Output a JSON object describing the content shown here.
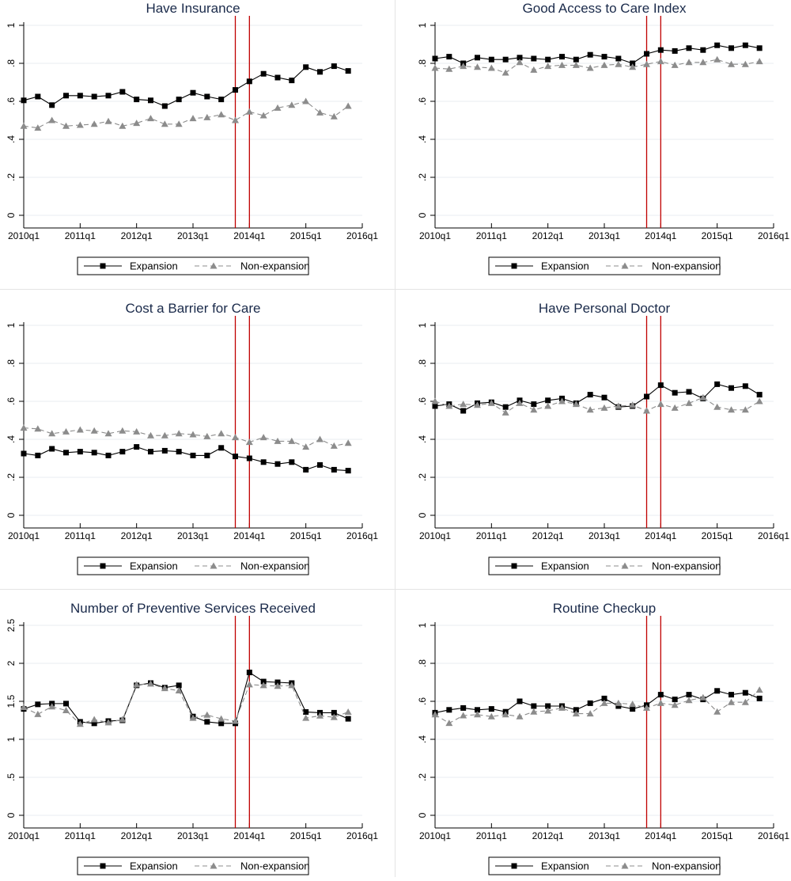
{
  "colors": {
    "expansion": "#000000",
    "non_expansion": "#8c8c8c",
    "reference_line": "#c00000",
    "title": "#1a2a4a",
    "grid": "#e8eef2"
  },
  "chart_data": [
    {
      "type": "line",
      "title": "Have Insurance",
      "x": [
        "2010q1",
        "2010q2",
        "2010q3",
        "2010q4",
        "2011q1",
        "2011q2",
        "2011q3",
        "2011q4",
        "2012q1",
        "2012q2",
        "2012q3",
        "2012q4",
        "2013q1",
        "2013q2",
        "2013q3",
        "2013q4",
        "2014q1",
        "2014q2",
        "2014q3",
        "2014q4",
        "2015q1",
        "2015q2",
        "2015q3",
        "2015q4"
      ],
      "x_ticks": [
        "2010q1",
        "2011q1",
        "2012q1",
        "2013q1",
        "2014q1",
        "2015q1",
        "2016q1"
      ],
      "y_ticks": [
        "0",
        ".2",
        ".4",
        ".6",
        ".8",
        "1"
      ],
      "ylim": [
        0,
        1
      ],
      "reference_lines": [
        "2013q4",
        "2014q1"
      ],
      "legend_position": "bottom",
      "series": [
        {
          "name": "Expansion",
          "marker": "square",
          "values": [
            0.605,
            0.625,
            0.58,
            0.63,
            0.63,
            0.625,
            0.63,
            0.65,
            0.61,
            0.605,
            0.575,
            0.61,
            0.645,
            0.625,
            0.61,
            0.66,
            0.705,
            0.745,
            0.725,
            0.71,
            0.78,
            0.755,
            0.785,
            0.76
          ]
        },
        {
          "name": "Non-expansion",
          "marker": "triangle",
          "values": [
            0.47,
            0.46,
            0.5,
            0.47,
            0.475,
            0.48,
            0.495,
            0.47,
            0.485,
            0.51,
            0.48,
            0.48,
            0.51,
            0.515,
            0.53,
            0.5,
            0.545,
            0.525,
            0.565,
            0.58,
            0.6,
            0.54,
            0.52,
            0.575
          ]
        }
      ]
    },
    {
      "type": "line",
      "title": "Good Access to Care Index",
      "x": [
        "2010q1",
        "2010q2",
        "2010q3",
        "2010q4",
        "2011q1",
        "2011q2",
        "2011q3",
        "2011q4",
        "2012q1",
        "2012q2",
        "2012q3",
        "2012q4",
        "2013q1",
        "2013q2",
        "2013q3",
        "2013q4",
        "2014q1",
        "2014q2",
        "2014q3",
        "2014q4",
        "2015q1",
        "2015q2",
        "2015q3",
        "2015q4"
      ],
      "x_ticks": [
        "2010q1",
        "2011q1",
        "2012q1",
        "2013q1",
        "2014q1",
        "2015q1",
        "2016q1"
      ],
      "y_ticks": [
        "0",
        ".2",
        ".4",
        ".6",
        ".8",
        "1"
      ],
      "ylim": [
        0,
        1
      ],
      "reference_lines": [
        "2013q4",
        "2014q1"
      ],
      "legend_position": "bottom",
      "series": [
        {
          "name": "Expansion",
          "marker": "square",
          "values": [
            0.825,
            0.835,
            0.8,
            0.83,
            0.82,
            0.82,
            0.83,
            0.825,
            0.82,
            0.835,
            0.82,
            0.845,
            0.835,
            0.825,
            0.8,
            0.85,
            0.87,
            0.865,
            0.88,
            0.87,
            0.895,
            0.88,
            0.895,
            0.88
          ]
        },
        {
          "name": "Non-expansion",
          "marker": "triangle",
          "values": [
            0.775,
            0.77,
            0.785,
            0.78,
            0.775,
            0.75,
            0.805,
            0.765,
            0.785,
            0.79,
            0.79,
            0.775,
            0.79,
            0.795,
            0.78,
            0.795,
            0.81,
            0.79,
            0.805,
            0.805,
            0.82,
            0.795,
            0.795,
            0.81
          ]
        }
      ]
    },
    {
      "type": "line",
      "title": "Cost a Barrier for Care",
      "x": [
        "2010q1",
        "2010q2",
        "2010q3",
        "2010q4",
        "2011q1",
        "2011q2",
        "2011q3",
        "2011q4",
        "2012q1",
        "2012q2",
        "2012q3",
        "2012q4",
        "2013q1",
        "2013q2",
        "2013q3",
        "2013q4",
        "2014q1",
        "2014q2",
        "2014q3",
        "2014q4",
        "2015q1",
        "2015q2",
        "2015q3",
        "2015q4"
      ],
      "x_ticks": [
        "2010q1",
        "2011q1",
        "2012q1",
        "2013q1",
        "2014q1",
        "2015q1",
        "2016q1"
      ],
      "y_ticks": [
        "0",
        ".2",
        ".4",
        ".6",
        ".8",
        "1"
      ],
      "ylim": [
        0,
        1
      ],
      "reference_lines": [
        "2013q4",
        "2014q1"
      ],
      "legend_position": "bottom",
      "series": [
        {
          "name": "Expansion",
          "marker": "square",
          "values": [
            0.325,
            0.315,
            0.35,
            0.33,
            0.335,
            0.33,
            0.315,
            0.335,
            0.36,
            0.335,
            0.34,
            0.335,
            0.315,
            0.315,
            0.355,
            0.31,
            0.3,
            0.28,
            0.27,
            0.28,
            0.24,
            0.265,
            0.24,
            0.235
          ]
        },
        {
          "name": "Non-expansion",
          "marker": "triangle",
          "values": [
            0.46,
            0.455,
            0.43,
            0.44,
            0.45,
            0.445,
            0.43,
            0.445,
            0.44,
            0.42,
            0.42,
            0.43,
            0.425,
            0.415,
            0.43,
            0.41,
            0.385,
            0.41,
            0.39,
            0.39,
            0.36,
            0.4,
            0.365,
            0.38
          ]
        }
      ]
    },
    {
      "type": "line",
      "title": "Have Personal Doctor",
      "x": [
        "2010q1",
        "2010q2",
        "2010q3",
        "2010q4",
        "2011q1",
        "2011q2",
        "2011q3",
        "2011q4",
        "2012q1",
        "2012q2",
        "2012q3",
        "2012q4",
        "2013q1",
        "2013q2",
        "2013q3",
        "2013q4",
        "2014q1",
        "2014q2",
        "2014q3",
        "2014q4",
        "2015q1",
        "2015q2",
        "2015q3",
        "2015q4"
      ],
      "x_ticks": [
        "2010q1",
        "2011q1",
        "2012q1",
        "2013q1",
        "2014q1",
        "2015q1",
        "2016q1"
      ],
      "y_ticks": [
        "0",
        ".2",
        ".4",
        ".6",
        ".8",
        "1"
      ],
      "ylim": [
        0,
        1
      ],
      "reference_lines": [
        "2013q4",
        "2014q1"
      ],
      "legend_position": "bottom",
      "series": [
        {
          "name": "Expansion",
          "marker": "square",
          "values": [
            0.575,
            0.585,
            0.55,
            0.59,
            0.595,
            0.57,
            0.605,
            0.585,
            0.605,
            0.615,
            0.59,
            0.635,
            0.62,
            0.57,
            0.575,
            0.625,
            0.685,
            0.645,
            0.65,
            0.615,
            0.69,
            0.67,
            0.68,
            0.635
          ]
        },
        {
          "name": "Non-expansion",
          "marker": "triangle",
          "values": [
            0.6,
            0.575,
            0.585,
            0.58,
            0.59,
            0.54,
            0.59,
            0.555,
            0.575,
            0.6,
            0.585,
            0.555,
            0.565,
            0.575,
            0.58,
            0.55,
            0.585,
            0.565,
            0.59,
            0.62,
            0.57,
            0.555,
            0.555,
            0.6
          ]
        }
      ]
    },
    {
      "type": "line",
      "title": "Number of Preventive Services Received",
      "x": [
        "2010q1",
        "2010q2",
        "2010q3",
        "2010q4",
        "2011q1",
        "2011q2",
        "2011q3",
        "2011q4",
        "2012q1",
        "2012q2",
        "2012q3",
        "2012q4",
        "2013q1",
        "2013q2",
        "2013q3",
        "2013q4",
        "2014q1",
        "2014q2",
        "2014q3",
        "2014q4",
        "2015q1",
        "2015q2",
        "2015q3",
        "2015q4"
      ],
      "x_ticks": [
        "2010q1",
        "2011q1",
        "2012q1",
        "2013q1",
        "2014q1",
        "2015q1",
        "2016q1"
      ],
      "y_ticks": [
        "0",
        ".5",
        "1",
        "1.5",
        "2",
        "2.5"
      ],
      "ylim": [
        0,
        2.5
      ],
      "reference_lines": [
        "2013q4",
        "2014q1"
      ],
      "legend_position": "bottom",
      "series": [
        {
          "name": "Expansion",
          "marker": "square",
          "values": [
            1.4,
            1.46,
            1.47,
            1.47,
            1.23,
            1.21,
            1.24,
            1.25,
            1.71,
            1.74,
            1.68,
            1.71,
            1.3,
            1.23,
            1.21,
            1.21,
            1.88,
            1.76,
            1.75,
            1.74,
            1.36,
            1.35,
            1.35,
            1.27
          ]
        },
        {
          "name": "Non-expansion",
          "marker": "triangle",
          "values": [
            1.42,
            1.33,
            1.43,
            1.38,
            1.2,
            1.26,
            1.22,
            1.26,
            1.72,
            1.73,
            1.67,
            1.64,
            1.28,
            1.32,
            1.27,
            1.24,
            1.72,
            1.71,
            1.7,
            1.71,
            1.28,
            1.31,
            1.29,
            1.36
          ]
        }
      ]
    },
    {
      "type": "line",
      "title": "Routine Checkup",
      "x": [
        "2010q1",
        "2010q2",
        "2010q3",
        "2010q4",
        "2011q1",
        "2011q2",
        "2011q3",
        "2011q4",
        "2012q1",
        "2012q2",
        "2012q3",
        "2012q4",
        "2013q1",
        "2013q2",
        "2013q3",
        "2013q4",
        "2014q1",
        "2014q2",
        "2014q3",
        "2014q4",
        "2015q1",
        "2015q2",
        "2015q3",
        "2015q4"
      ],
      "x_ticks": [
        "2010q1",
        "2011q1",
        "2012q1",
        "2013q1",
        "2014q1",
        "2015q1",
        "2016q1"
      ],
      "y_ticks": [
        "0",
        ".2",
        ".4",
        ".6",
        ".8",
        "1"
      ],
      "ylim": [
        0,
        1
      ],
      "reference_lines": [
        "2013q4",
        "2014q1"
      ],
      "legend_position": "bottom",
      "series": [
        {
          "name": "Expansion",
          "marker": "square",
          "values": [
            0.54,
            0.555,
            0.565,
            0.555,
            0.56,
            0.545,
            0.6,
            0.575,
            0.575,
            0.575,
            0.555,
            0.59,
            0.615,
            0.575,
            0.56,
            0.58,
            0.635,
            0.61,
            0.635,
            0.61,
            0.655,
            0.635,
            0.645,
            0.615
          ]
        },
        {
          "name": "Non-expansion",
          "marker": "triangle",
          "values": [
            0.53,
            0.485,
            0.525,
            0.53,
            0.52,
            0.53,
            0.52,
            0.545,
            0.55,
            0.565,
            0.535,
            0.535,
            0.59,
            0.59,
            0.585,
            0.565,
            0.59,
            0.58,
            0.605,
            0.62,
            0.545,
            0.595,
            0.595,
            0.66
          ]
        }
      ]
    }
  ]
}
